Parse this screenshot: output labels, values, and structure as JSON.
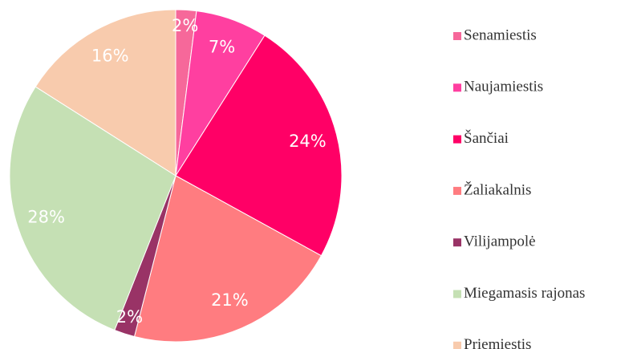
{
  "chart_data": {
    "type": "pie",
    "categories": [
      "Senamiestis",
      "Naujamiestis",
      "Šančiai",
      "Žaliakalnis",
      "Vilijampolė",
      "Miegamasis rajonas",
      "Priemiestis"
    ],
    "values": [
      2,
      7,
      24,
      21,
      2,
      28,
      16
    ],
    "value_labels": [
      "2%",
      "7%",
      "24%",
      "21%",
      "2%",
      "28%",
      "16%"
    ],
    "colors": [
      "#f6689a",
      "#ff3fa0",
      "#ff0066",
      "#ff7c80",
      "#993366",
      "#c5e0b4",
      "#f8cbad"
    ],
    "legend": "right"
  }
}
